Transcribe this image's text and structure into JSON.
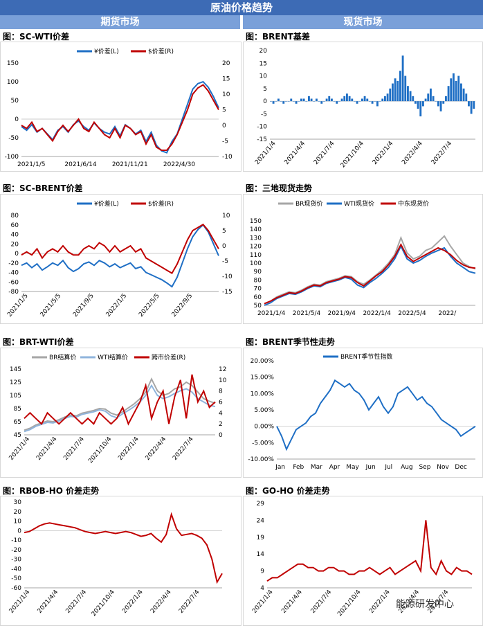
{
  "page_title": "原油价格趋势",
  "sections": {
    "left": "期货市场",
    "right": "现货市场"
  },
  "colors": {
    "blue": "#1f6fc5",
    "red": "#c00000",
    "gray": "#a6a6a6",
    "lightblue": "#8fb4dc"
  },
  "watermark": "能源研发中心",
  "chart_data": [
    {
      "id": "sc-wti",
      "type": "line",
      "title": "图：SC-WTI价差",
      "legend": [
        "¥价差(L)",
        "$价差(R)"
      ],
      "series": [
        {
          "name": "¥价差(L)",
          "axis": "left",
          "color": "blue",
          "values": [
            -20,
            -30,
            -15,
            -35,
            -25,
            -40,
            -55,
            -30,
            -20,
            -35,
            -15,
            -5,
            -20,
            -30,
            -10,
            -25,
            -35,
            -40,
            -20,
            -45,
            -15,
            -25,
            -40,
            -30,
            -60,
            -35,
            -70,
            -85,
            -90,
            -60,
            -40,
            0,
            40,
            80,
            95,
            100,
            85,
            60,
            30
          ]
        },
        {
          "name": "$价差(R)",
          "axis": "right",
          "color": "red",
          "values": [
            0,
            -1,
            1,
            -2,
            -1,
            -3,
            -5,
            -2,
            0,
            -2,
            0,
            2,
            -1,
            -2,
            1,
            -1,
            -3,
            -4,
            -1,
            -4,
            0,
            -1,
            -3,
            -2,
            -6,
            -3,
            -7,
            -8,
            -8,
            -6,
            -3,
            1,
            5,
            10,
            12,
            13,
            11,
            8,
            5
          ]
        }
      ],
      "x_tick_labels": [
        "2021/1/5",
        "2021/6/14",
        "2021/11/21",
        "2022/4/30"
      ],
      "ylim_left": [
        -100,
        150
      ],
      "yticks_left": [
        "150",
        "100",
        "50",
        "0",
        "-50",
        "-100"
      ],
      "ylim_right": [
        -10,
        20
      ],
      "yticks_right": [
        "20",
        "15",
        "10",
        "5",
        "0",
        "-5",
        "-10"
      ]
    },
    {
      "id": "brent-basis",
      "type": "bar",
      "title": "图：BRENT基差",
      "values": [
        0,
        -1,
        0,
        1,
        0,
        -1,
        0,
        0,
        1,
        0,
        -1,
        0,
        1,
        1,
        0,
        2,
        1,
        0,
        1,
        0,
        -1,
        0,
        1,
        2,
        1,
        0,
        -1,
        0,
        1,
        2,
        3,
        2,
        1,
        0,
        -1,
        0,
        1,
        2,
        1,
        0,
        -1,
        0,
        -2,
        0,
        1,
        2,
        3,
        5,
        7,
        9,
        8,
        12,
        18,
        10,
        6,
        4,
        2,
        -1,
        -3,
        -6,
        -2,
        1,
        3,
        5,
        2,
        0,
        -2,
        -4,
        -1,
        2,
        6,
        9,
        11,
        8,
        10,
        7,
        5,
        3,
        -2,
        -5,
        -3
      ],
      "x_tick_labels": [
        "2021/1/4",
        "2021/4/4",
        "2021/7/4",
        "2021/10/4",
        "2022/1/4",
        "2022/4/4",
        "2022/7/4"
      ],
      "ylim": [
        -15,
        20
      ],
      "yticks": [
        "20",
        "15",
        "10",
        "5",
        "0",
        "-5",
        "-10",
        "-15"
      ]
    },
    {
      "id": "sc-brent",
      "type": "line",
      "title": "图：SC-BRENT价差",
      "legend": [
        "¥价差(L)",
        "$价差(R)"
      ],
      "series": [
        {
          "name": "¥价差(L)",
          "axis": "left",
          "color": "blue",
          "values": [
            -25,
            -20,
            -30,
            -22,
            -35,
            -28,
            -20,
            -25,
            -15,
            -30,
            -38,
            -32,
            -22,
            -18,
            -25,
            -15,
            -20,
            -28,
            -22,
            -30,
            -25,
            -20,
            -32,
            -28,
            -40,
            -45,
            -50,
            -55,
            -62,
            -70,
            -50,
            -20,
            10,
            35,
            50,
            60,
            45,
            20,
            -5
          ]
        },
        {
          "name": "$价差(R)",
          "axis": "right",
          "color": "red",
          "values": [
            -3,
            -2,
            -3,
            -1,
            -4,
            -2,
            -1,
            -2,
            0,
            -2,
            -3,
            -3,
            -1,
            0,
            -1,
            1,
            0,
            -2,
            0,
            -2,
            -1,
            0,
            -2,
            -1,
            -4,
            -5,
            -6,
            -7,
            -8,
            -9,
            -6,
            -2,
            2,
            5,
            6,
            7,
            5,
            2,
            -1
          ]
        }
      ],
      "x_tick_labels": [
        "2021/1/5",
        "2021/5/5",
        "2021/9/5",
        "2022/1/5",
        "2022/5/5",
        "2022/9/5"
      ],
      "ylim_left": [
        -80,
        80
      ],
      "yticks_left": [
        "80",
        "60",
        "40",
        "20",
        "0",
        "-20",
        "-40",
        "-60",
        "-80"
      ],
      "ylim_right": [
        -15,
        10
      ],
      "yticks_right": [
        "10",
        "5",
        "0",
        "-5",
        "-10",
        "-15"
      ]
    },
    {
      "id": "three-spot",
      "type": "line",
      "title": "图：三地现货走势",
      "legend": [
        "BR现货价",
        "WTI现货价",
        "中东现货价"
      ],
      "series": [
        {
          "name": "BR现货价",
          "color": "gray",
          "values": [
            52,
            55,
            60,
            63,
            66,
            65,
            68,
            72,
            75,
            74,
            78,
            80,
            82,
            85,
            84,
            78,
            75,
            80,
            86,
            92,
            100,
            110,
            130,
            112,
            105,
            108,
            115,
            118,
            125,
            132,
            120,
            110,
            100,
            96,
            93
          ]
        },
        {
          "name": "WTI现货价",
          "color": "blue",
          "values": [
            50,
            53,
            58,
            61,
            64,
            63,
            66,
            70,
            73,
            72,
            76,
            78,
            80,
            83,
            81,
            74,
            71,
            77,
            82,
            88,
            95,
            105,
            120,
            105,
            100,
            103,
            108,
            112,
            115,
            118,
            108,
            100,
            95,
            90,
            88
          ]
        },
        {
          "name": "中东现货价",
          "color": "red",
          "values": [
            52,
            55,
            59,
            62,
            65,
            64,
            67,
            71,
            74,
            73,
            77,
            79,
            81,
            84,
            83,
            77,
            73,
            79,
            85,
            90,
            98,
            108,
            122,
            108,
            102,
            106,
            110,
            114,
            118,
            115,
            110,
            103,
            98,
            95,
            94
          ]
        }
      ],
      "x_tick_labels": [
        "2021/1/4",
        "2021/5/4",
        "2021/9/4",
        "2022/1/4",
        "2022/5/4",
        "2022/"
      ],
      "ylim": [
        50,
        150
      ],
      "yticks": [
        "150",
        "140",
        "130",
        "120",
        "110",
        "100",
        "90",
        "80",
        "70",
        "60",
        "50"
      ]
    },
    {
      "id": "brt-wti",
      "type": "line",
      "title": "图：BRT-WTI价差",
      "legend": [
        "BR结算价",
        "WTI结算价",
        "跨市价差(R)"
      ],
      "series": [
        {
          "name": "BR结算价",
          "axis": "left",
          "color": "gray",
          "values": [
            52,
            55,
            60,
            63,
            66,
            65,
            68,
            72,
            75,
            74,
            78,
            80,
            82,
            85,
            84,
            78,
            75,
            80,
            86,
            92,
            100,
            110,
            130,
            112,
            105,
            108,
            115,
            118,
            125,
            120,
            110,
            100,
            96,
            93
          ]
        },
        {
          "name": "WTI结算价",
          "axis": "left",
          "color": "lightblue",
          "values": [
            50,
            53,
            58,
            61,
            64,
            63,
            66,
            70,
            73,
            72,
            76,
            78,
            80,
            83,
            81,
            74,
            71,
            77,
            82,
            88,
            95,
            105,
            120,
            105,
            100,
            103,
            108,
            112,
            115,
            110,
            100,
            95,
            90,
            88
          ]
        },
        {
          "name": "跨市价差(R)",
          "axis": "right",
          "color": "red",
          "values": [
            3,
            4,
            3,
            2,
            4,
            3,
            2,
            3,
            4,
            3,
            2,
            3,
            2,
            4,
            3,
            2,
            3,
            5,
            2,
            4,
            6,
            9,
            3,
            6,
            8,
            2,
            7,
            10,
            3,
            11,
            6,
            8,
            5,
            6
          ]
        }
      ],
      "x_tick_labels": [
        "2021/1/4",
        "2021/4/4",
        "2021/7/4",
        "2021/10/4",
        "2022/1/4",
        "2022/4/4",
        "2022/7/4"
      ],
      "ylim_left": [
        45,
        145
      ],
      "yticks_left": [
        "145",
        "125",
        "105",
        "85",
        "65",
        "45"
      ],
      "ylim_right": [
        0,
        12
      ],
      "yticks_right": [
        "12",
        "10",
        "8",
        "6",
        "4",
        "2",
        "0"
      ]
    },
    {
      "id": "brent-seasonal",
      "type": "line",
      "title": "图：BRENT季节性走势",
      "legend": [
        "BRENT季节性指数"
      ],
      "series": [
        {
          "name": "BRENT季节性指数",
          "color": "blue",
          "values": [
            0,
            -3,
            -7,
            -4,
            -1,
            0,
            1,
            3,
            4,
            7,
            9,
            11,
            14,
            13,
            12,
            13,
            11,
            10,
            8,
            5,
            7,
            9,
            6,
            4,
            6,
            10,
            11,
            12,
            10,
            8,
            9,
            7,
            6,
            4,
            2,
            1,
            0,
            -1,
            -3,
            -2,
            -1,
            0
          ]
        }
      ],
      "x_tick_labels": [
        "Jan",
        "Feb",
        "Mar",
        "Apr",
        "May",
        "Jun",
        "Jul",
        "Aug",
        "Sep",
        "Nov",
        "Dec"
      ],
      "ylim": [
        -10,
        20
      ],
      "yticks": [
        "20.00%",
        "15.00%",
        "10.00%",
        "5.00%",
        "0.00%",
        "-5.00%",
        "-10.00%"
      ]
    },
    {
      "id": "rbob-ho",
      "type": "line",
      "title": "图：RBOB-HO 价差走势",
      "series": [
        {
          "name": "",
          "color": "red",
          "values": [
            -2,
            -1,
            2,
            5,
            7,
            8,
            7,
            6,
            5,
            4,
            3,
            1,
            -1,
            -2,
            -3,
            -2,
            -1,
            -2,
            -3,
            -2,
            -1,
            -2,
            -4,
            -6,
            -5,
            -3,
            -8,
            -12,
            -4,
            17,
            2,
            -5,
            -4,
            -3,
            -5,
            -8,
            -15,
            -30,
            -54,
            -45
          ]
        }
      ],
      "x_tick_labels": [
        "2021/1/4",
        "2021/4/4",
        "2021/7/4",
        "2021/10/4",
        "2022/1/4",
        "2022/4/4",
        "2022/7/4"
      ],
      "ylim": [
        -60,
        30
      ],
      "yticks": [
        "30",
        "20",
        "10",
        "0",
        "-10",
        "-20",
        "-30",
        "-40",
        "-50",
        "-60"
      ]
    },
    {
      "id": "go-ho",
      "type": "line",
      "title": "图：GO-HO 价差走势",
      "series": [
        {
          "name": "",
          "color": "red",
          "values": [
            6,
            7,
            7,
            8,
            9,
            10,
            11,
            11,
            10,
            10,
            9,
            9,
            10,
            10,
            9,
            9,
            8,
            8,
            9,
            9,
            10,
            9,
            8,
            9,
            10,
            8,
            9,
            10,
            11,
            12,
            9,
            24,
            10,
            8,
            12,
            9,
            8,
            10,
            9,
            9,
            8
          ]
        }
      ],
      "x_tick_labels": [
        "2021/1/4",
        "2021/4/4",
        "2021/7/4",
        "2021/10/4",
        "2022/1/4",
        "2022/4/4",
        "2022/7/4"
      ],
      "ylim": [
        4,
        29
      ],
      "yticks": [
        "29",
        "24",
        "19",
        "14",
        "9",
        "4"
      ]
    }
  ]
}
